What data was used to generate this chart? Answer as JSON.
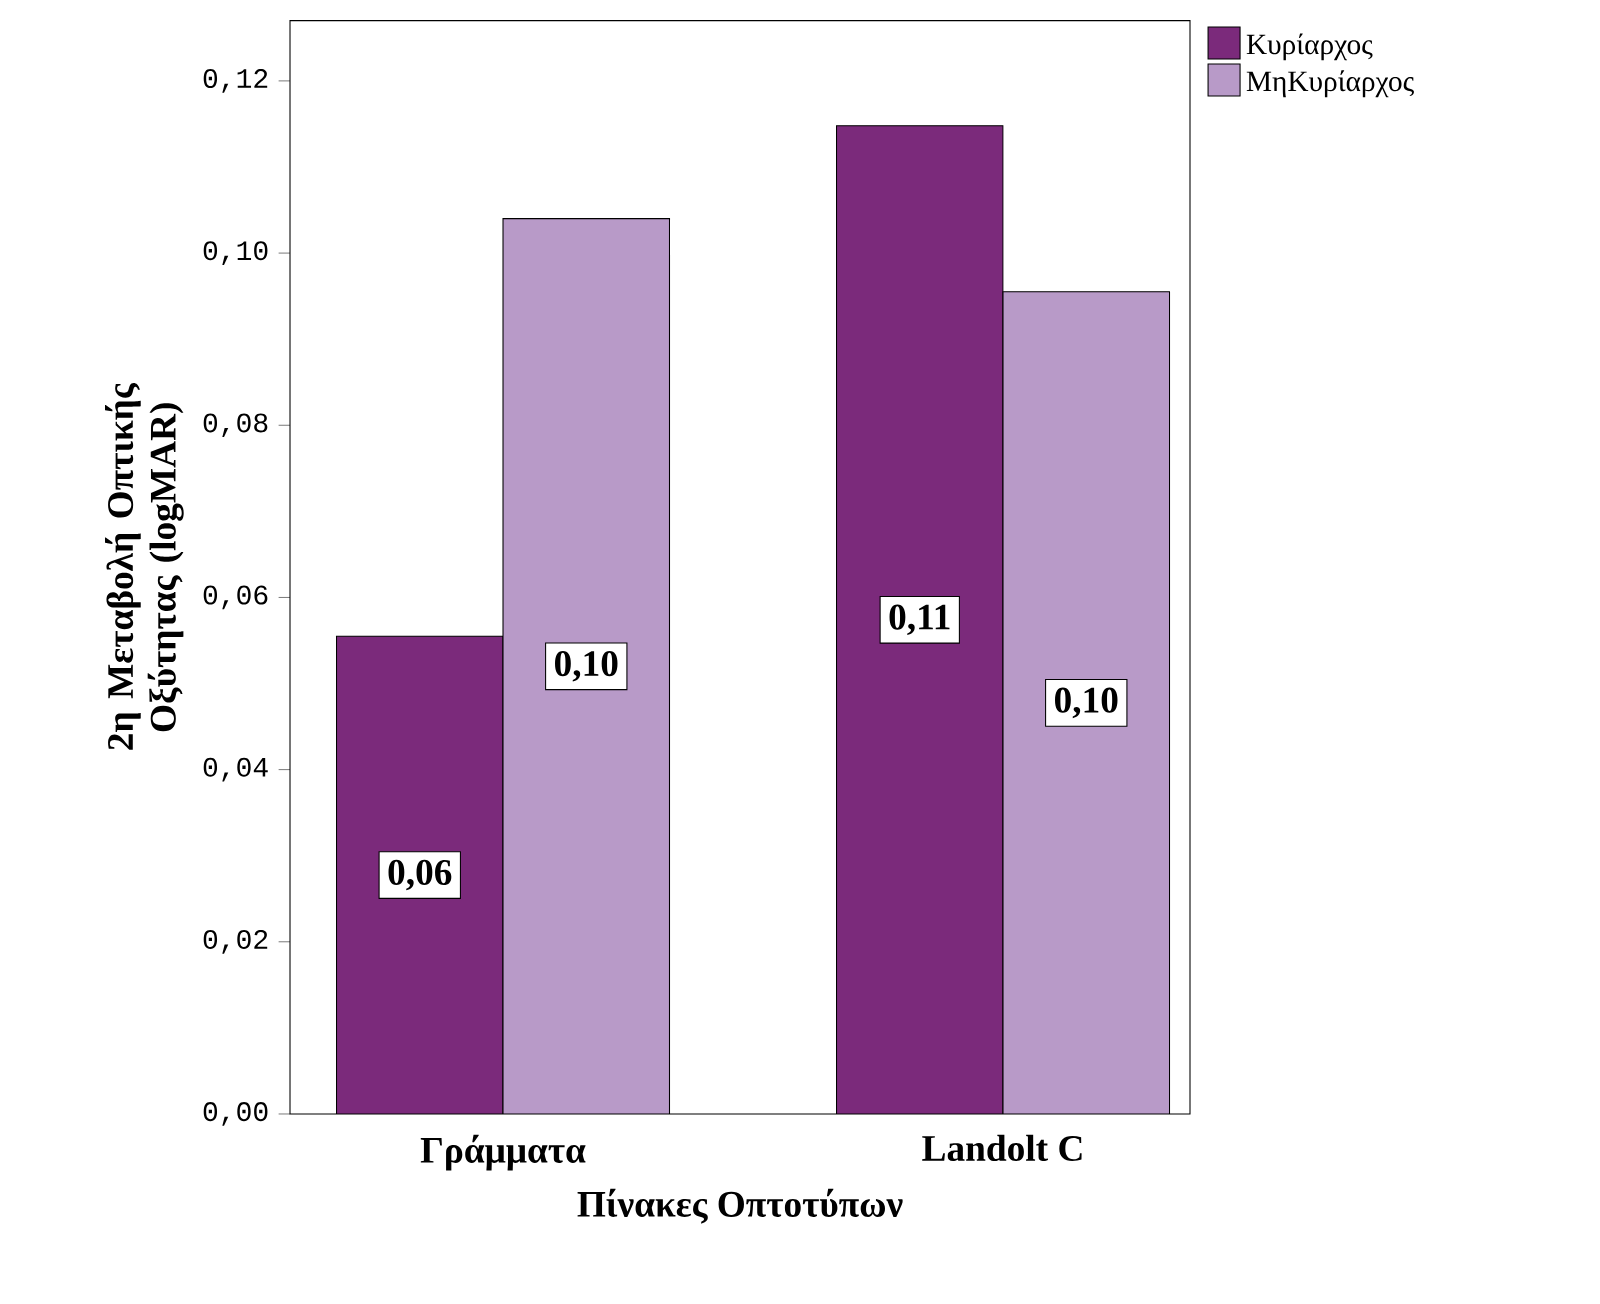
{
  "chart_data": {
    "type": "bar",
    "xlabel": "Πίνακες Οπτοτύπων",
    "ylabel": "2η Μεταβολή Οπτικής Οξύτητας (logMAR)",
    "categories": [
      "Γράμματα",
      "Landolt C"
    ],
    "series": [
      {
        "name": "Κυρίαρχος",
        "color": "#7b2a7b",
        "values": [
          0.0555,
          0.1148
        ],
        "value_labels": [
          "0,06",
          "0,11"
        ]
      },
      {
        "name": "ΜηΚυρίαρχος",
        "color": "#b89ac8",
        "values": [
          0.104,
          0.0955
        ],
        "value_labels": [
          "0,10",
          "0,10"
        ]
      }
    ],
    "ylim": [
      0,
      0.127
    ],
    "yticks": [
      {
        "value": 0,
        "label": "0,00"
      },
      {
        "value": 0.02,
        "label": "0,02"
      },
      {
        "value": 0.04,
        "label": "0,04"
      },
      {
        "value": 0.06,
        "label": "0,06"
      },
      {
        "value": 0.08,
        "label": "0,08"
      },
      {
        "value": 0.1,
        "label": "0,10"
      },
      {
        "value": 0.12,
        "label": "0,12"
      }
    ],
    "grid": false,
    "legend": "top right"
  }
}
